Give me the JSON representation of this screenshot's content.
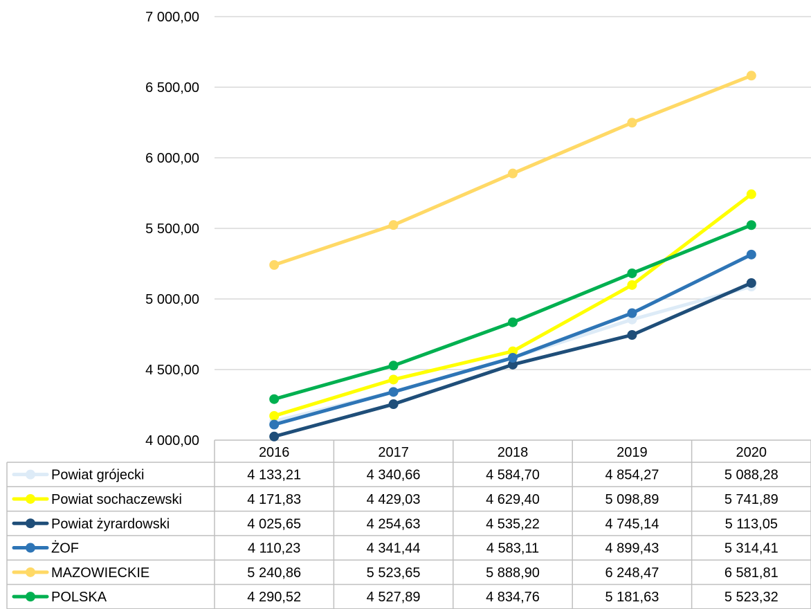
{
  "chart_data": {
    "type": "line",
    "x": [
      "2016",
      "2017",
      "2018",
      "2019",
      "2020"
    ],
    "y_ticks": [
      "4 000,00",
      "4 500,00",
      "5 000,00",
      "5 500,00",
      "6 000,00",
      "6 500,00",
      "7 000,00"
    ],
    "ylim": [
      4000,
      7000
    ],
    "grid": true,
    "legend": "data-table-below",
    "series": [
      {
        "name": "Powiat grójecki",
        "color": "#DDEBF7",
        "values": [
          4133.21,
          4340.66,
          4584.7,
          4854.27,
          5088.28
        ],
        "labels": [
          "4 133,21",
          "4 340,66",
          "4 584,70",
          "4 854,27",
          "5 088,28"
        ]
      },
      {
        "name": "Powiat sochaczewski",
        "color": "#FFFF00",
        "values": [
          4171.83,
          4429.03,
          4629.4,
          5098.89,
          5741.89
        ],
        "labels": [
          "4 171,83",
          "4 429,03",
          "4 629,40",
          "5 098,89",
          "5 741,89"
        ]
      },
      {
        "name": "Powiat żyrardowski",
        "color": "#1F4E79",
        "values": [
          4025.65,
          4254.63,
          4535.22,
          4745.14,
          5113.05
        ],
        "labels": [
          "4 025,65",
          "4 254,63",
          "4 535,22",
          "4 745,14",
          "5 113,05"
        ]
      },
      {
        "name": "ŻOF",
        "color": "#2E75B6",
        "values": [
          4110.23,
          4341.44,
          4583.11,
          4899.43,
          5314.41
        ],
        "labels": [
          "4 110,23",
          "4 341,44",
          "4 583,11",
          "4 899,43",
          "5 314,41"
        ]
      },
      {
        "name": "MAZOWIECKIE",
        "color": "#FFD966",
        "values": [
          5240.86,
          5523.65,
          5888.9,
          6248.47,
          6581.81
        ],
        "labels": [
          "5 240,86",
          "5 523,65",
          "5 888,90",
          "6 248,47",
          "6 581,81"
        ]
      },
      {
        "name": "POLSKA",
        "color": "#00B050",
        "values": [
          4290.52,
          4527.89,
          4834.76,
          5181.63,
          5523.32
        ],
        "labels": [
          "4 290,52",
          "4 527,89",
          "4 834,76",
          "5 181,63",
          "5 523,32"
        ]
      }
    ]
  }
}
